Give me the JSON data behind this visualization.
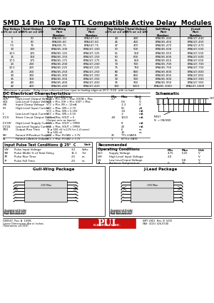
{
  "title": "SMD 14 Pin 10 Tap TTL Compatible Active Delay  Modules",
  "bg_color": "#ffffff",
  "table_rows": [
    [
      "5",
      "50",
      "EPA265-50",
      "EPA247-50",
      "44",
      "440",
      "EPA265-440",
      "EPA247-440"
    ],
    [
      "6",
      "60",
      "EPA265-60",
      "EPA247-60",
      "45",
      "450",
      "EPA265-450",
      "EPA247-450"
    ],
    [
      "7.5",
      "75",
      "EPA265-75",
      "EPA247-75",
      "47",
      "470",
      "EPA265-470",
      "EPA247-470"
    ],
    [
      "10",
      "100",
      "EPA265-100",
      "EPA247-100",
      "50",
      "500",
      "EPA265-500",
      "EPA247-500"
    ],
    [
      "12.5",
      "125",
      "EPA265-125",
      "EPA247-125",
      "55",
      "550",
      "EPA265-550",
      "EPA247-550"
    ],
    [
      "15",
      "150",
      "EPA265-150",
      "EPA247-150",
      "60",
      "600",
      "EPA265-600",
      "EPA247-600"
    ],
    [
      "17.5",
      "175",
      "EPA265-175",
      "EPA247-175",
      "65",
      "650",
      "EPA265-650",
      "EPA247-650"
    ],
    [
      "20",
      "200",
      "EPA265-200",
      "EPA247-200",
      "70",
      "700",
      "EPA265-700",
      "EPA247-700"
    ],
    [
      "22.5",
      "225",
      "EPA265-225",
      "EPA247-225",
      "75",
      "750",
      "EPA265-750",
      "EPA247-750"
    ],
    [
      "25",
      "250",
      "EPA265-250",
      "EPA247-250",
      "80",
      "800",
      "EPA265-800",
      "EPA247-800"
    ],
    [
      "30",
      "300",
      "EPA265-300",
      "EPA247-300",
      "85",
      "850",
      "EPA265-850",
      "EPA247-850"
    ],
    [
      "35",
      "350",
      "EPA265-350",
      "EPA247-350",
      "90",
      "900",
      "EPA265-900",
      "EPA247-900"
    ],
    [
      "40",
      "400",
      "EPA265-400",
      "EPA247-400",
      "95",
      "950",
      "EPA265-950",
      "EPA247-950"
    ],
    [
      "42",
      "420",
      "EPA265-420",
      "EPA247-420",
      "100",
      "1000",
      "EPA265-1000",
      "EPA247-1000"
    ]
  ],
  "table_note": "†Whichever is greater.   Delay times referenced from input to leading edges at 25°C, 5.0V,  with no load.",
  "dc_title": "DC Electrical Characteristics",
  "dc_rows": [
    [
      "VOH",
      "High-Level Output Voltage",
      "VCC = Min, IOH = Max, IOUTA = Max",
      "2.7",
      "",
      "V"
    ],
    [
      "VOL",
      "Low-Level Output Voltage",
      "VCC = Min, IOH = Min, IOUT = Max",
      "",
      "0.5",
      "V"
    ],
    [
      "VIK",
      "Input Clamp Voltage",
      "VCC = Min, IIN = -12mA",
      "",
      "-1.2",
      "V"
    ],
    [
      "IIH",
      "High-Level Input Current",
      "VCC = Max, VIN = 2.7V",
      "",
      "50",
      "µA"
    ],
    [
      "",
      "",
      "VCC = Max, VIN = 5.25V",
      "",
      "1.0",
      "mA"
    ],
    [
      "IL",
      "Low-Level Input Current",
      "VCC = Max, VIN = 0.5V",
      "",
      "-2",
      "mA"
    ],
    [
      "ICCS",
      "Short Circuit Output Current",
      "VCC = Max, VOUT = 0",
      "-40",
      "1100",
      "mA"
    ],
    [
      "",
      "",
      "(Output acts as Inputs)",
      "",
      "",
      ""
    ],
    [
      "ICCOH",
      "High-Level Supply Current",
      "VCC = Max, VOUT = OPEN",
      "",
      "8",
      "mA"
    ],
    [
      "ICCOL",
      "Low-Level Supply Current",
      "VCC = Max, VOUT = OPEN",
      "",
      "20",
      "mA"
    ],
    [
      "TRO",
      "Output Rise Time",
      "Td ≥ 500 nS (±12% for 2-4 tones)",
      "",
      "6",
      "ns"
    ],
    [
      "",
      "",
      "Td ≥ 500 nS",
      "",
      "10",
      "ns"
    ],
    [
      "RH",
      "Fanout H(Positive Output)",
      "VCC = Max, RLOAD = 3.7V",
      "25",
      "TTL LOADS",
      ""
    ],
    [
      "RL",
      "Fanout L(Active Output)",
      "VCC = Max, RLOAD = 3.7V",
      "1",
      "8TTLs GATE",
      ""
    ]
  ],
  "input_pulse_title": "Input Pulse Test Conditions @ 25°  C",
  "input_pulse_rows": [
    [
      "VIN",
      "Pulse Input Voltage",
      "3.2",
      "Volts"
    ],
    [
      "TW",
      "Pulse Width % of Total Delay",
      "11.1",
      "Td"
    ],
    [
      "TR",
      "Pulse Rise Time",
      "2.5",
      "ns"
    ],
    [
      "TF",
      "Pulse Fall Time",
      "2.5",
      "ns"
    ]
  ],
  "rec_rows": [
    [
      "VCC",
      "Supply Voltage",
      "4.75",
      "5.25",
      "V"
    ],
    [
      "VIH",
      "High Level Input Voltage",
      "2.0",
      "",
      "V"
    ],
    [
      "VIL",
      "Low Level Input Voltage",
      "",
      "0.8",
      "V"
    ],
    [
      "TA",
      "Ambient Temperature",
      "0",
      "70",
      "°C"
    ]
  ],
  "gull_title": "Gull-Wing Package",
  "jlead_title": "J-Lead Package",
  "doc_number": "DS0567  Rev. A  10/98",
  "dimensions_note": "Linear Dimensions Are in Inches",
  "tolerance_note": "(Tolerances ±0.010)",
  "fax_note": "FAX: (408) 526-8740",
  "right_doc": "SMT 2001  Rev. B  5/00",
  "right_fax": "FAX: (415) 326-8740"
}
